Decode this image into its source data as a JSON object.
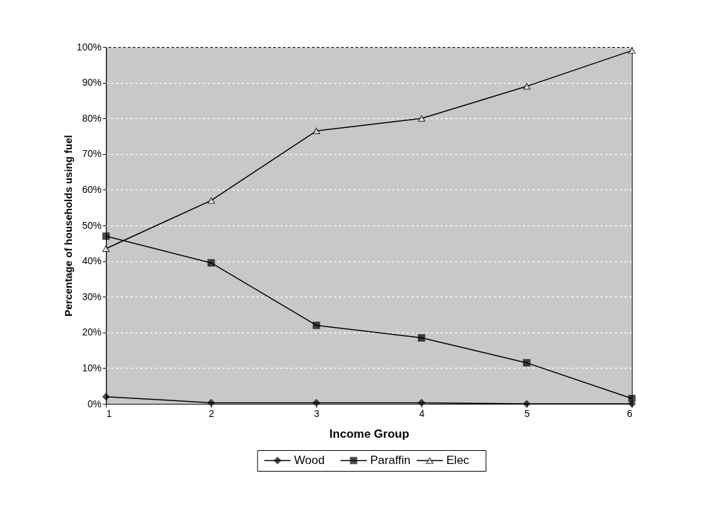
{
  "chart_data": {
    "type": "line",
    "xlabel": "Income Group",
    "ylabel": "Percentage of households using fuel",
    "x": [
      1,
      2,
      3,
      4,
      5,
      6
    ],
    "series": [
      {
        "name": "Wood",
        "color": "#000000",
        "marker": "diamond",
        "values": [
          2,
          0.3,
          0.3,
          0.3,
          0,
          0
        ]
      },
      {
        "name": "Paraffin",
        "color": "#000000",
        "marker": "square",
        "values": [
          47,
          39.5,
          22,
          18.5,
          11.5,
          1.5
        ]
      },
      {
        "name": "Elec",
        "color": "#000000",
        "marker": "triangle",
        "values": [
          43.5,
          57,
          76.5,
          80,
          89,
          99
        ]
      }
    ],
    "xlim": [
      1,
      6
    ],
    "xticks": [
      1,
      2,
      3,
      4,
      5,
      6
    ],
    "ylim": [
      0,
      100
    ],
    "yticks": [
      {
        "value": 0,
        "label": "0%"
      },
      {
        "value": 10,
        "label": "10%"
      },
      {
        "value": 20,
        "label": "20%"
      },
      {
        "value": 30,
        "label": "30%"
      },
      {
        "value": 40,
        "label": "40%"
      },
      {
        "value": 50,
        "label": "50%"
      },
      {
        "value": 60,
        "label": "60%"
      },
      {
        "value": 70,
        "label": "70%"
      },
      {
        "value": 80,
        "label": "80%"
      },
      {
        "value": 90,
        "label": "90%"
      },
      {
        "value": 100,
        "label": "100%"
      }
    ],
    "grid": "y",
    "legend": "bottom",
    "line_style": "solid"
  }
}
